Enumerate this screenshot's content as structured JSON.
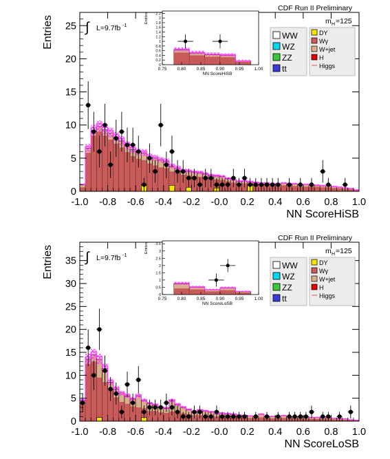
{
  "chart_data": [
    {
      "type": "histogram",
      "xlabel": "NN ScoreHiSB",
      "ylabel": "Entries",
      "xlim": [
        -1.0,
        1.0
      ],
      "ylim": [
        0,
        27
      ],
      "xticks": [
        "-1.0",
        "-0.8",
        "-0.6",
        "-0.4",
        "-0.2",
        "-0.0",
        "0.2",
        "0.4",
        "0.6",
        "0.8",
        "1.0"
      ],
      "yticks": [
        "0",
        "5",
        "10",
        "15",
        "20",
        "25"
      ],
      "ytick_values": [
        0,
        5,
        10,
        15,
        20,
        25
      ],
      "header": "CDF Run II Preliminary",
      "mass_label": "m",
      "mass_sub": "H",
      "mass_value": "=125",
      "lumi_label": "L=9.7fb",
      "lumi_exp": "-1",
      "bin_edges_start": -1.0,
      "bin_width": 0.04,
      "stack_total": [
        1.0,
        6.5,
        9.2,
        9.8,
        9.3,
        8.8,
        8.2,
        7.6,
        6.9,
        6.3,
        5.9,
        5.8,
        5.2,
        5.0,
        4.7,
        4.5,
        3.8,
        3.5,
        3.1,
        3.0,
        2.9,
        2.8,
        2.6,
        2.4,
        2.3,
        2.2,
        1.9,
        1.7,
        1.5,
        1.5,
        1.4,
        1.3,
        1.2,
        1.2,
        1.1,
        1.1,
        1.2,
        1.1,
        1.1,
        1.0,
        1.0,
        0.9,
        0.9,
        0.8,
        0.8,
        0.7,
        0.6,
        0.5,
        0.4,
        0.2
      ],
      "wgamma": [
        0.6,
        5.8,
        8.4,
        9.0,
        8.4,
        7.8,
        7.2,
        6.6,
        5.9,
        5.3,
        4.9,
        4.7,
        4.2,
        3.9,
        3.6,
        3.5,
        3.0,
        2.8,
        2.5,
        2.4,
        2.3,
        2.2,
        2.0,
        1.9,
        1.8,
        1.7,
        1.5,
        1.3,
        1.2,
        1.2,
        1.1,
        1.0,
        0.9,
        0.9,
        0.8,
        0.8,
        0.9,
        0.8,
        0.8,
        0.7,
        0.7,
        0.7,
        0.7,
        0.6,
        0.6,
        0.5,
        0.45,
        0.35,
        0.3,
        0.15
      ],
      "dy": [
        0.2,
        0.0,
        0.4,
        0.0,
        0.0,
        0.0,
        0.0,
        0.0,
        0.0,
        0.0,
        0.0,
        0.0,
        0.0,
        0.0,
        0.0,
        0.0,
        0.0,
        0.0,
        0.0,
        0.0,
        0.0,
        0.0,
        0.0,
        0.0,
        0.0,
        0.0,
        0.0,
        0.0,
        0.0,
        0.0,
        0.0,
        0.0,
        0.0,
        0.0,
        0.0,
        0.0,
        0.0,
        0.0,
        0.0,
        0.0,
        0.0,
        0.0,
        0.0,
        0.0,
        0.0,
        0.0,
        0.0,
        0.0,
        0.0,
        0.0
      ],
      "dy_boxes": [
        {
          "x": -0.56,
          "h": 0.9
        },
        {
          "x": -0.36,
          "h": 0.9
        },
        {
          "x": -0.24,
          "h": 0.6
        },
        {
          "x": -0.04,
          "h": 0.5
        },
        {
          "x": 0.2,
          "h": 0.9
        }
      ],
      "data_points": [
        [
          -0.94,
          13,
          3.6
        ],
        [
          -0.9,
          9,
          3.0
        ],
        [
          -0.86,
          6,
          2.4
        ],
        [
          -0.82,
          10,
          3.2
        ],
        [
          -0.78,
          4,
          2.0
        ],
        [
          -0.74,
          8,
          2.8
        ],
        [
          -0.7,
          9,
          3.0
        ],
        [
          -0.66,
          7,
          2.6
        ],
        [
          -0.62,
          7,
          2.6
        ],
        [
          -0.58,
          6,
          2.4
        ],
        [
          -0.54,
          1,
          1.0
        ],
        [
          -0.5,
          5,
          2.2
        ],
        [
          -0.46,
          3,
          1.7
        ],
        [
          -0.42,
          10,
          3.2
        ],
        [
          -0.38,
          4,
          2.0
        ],
        [
          -0.34,
          6,
          2.4
        ],
        [
          -0.3,
          3,
          1.7
        ],
        [
          -0.26,
          3,
          1.7
        ],
        [
          -0.22,
          2,
          1.4
        ],
        [
          -0.18,
          2,
          1.4
        ],
        [
          -0.14,
          1,
          1.0
        ],
        [
          -0.1,
          2,
          1.4
        ],
        [
          -0.06,
          2,
          1.4
        ],
        [
          -0.02,
          1,
          1.0
        ],
        [
          0.02,
          1,
          1.0
        ],
        [
          0.06,
          1,
          1.0
        ],
        [
          0.1,
          2,
          1.4
        ],
        [
          0.14,
          1,
          1.0
        ],
        [
          0.18,
          2,
          1.4
        ],
        [
          0.22,
          1,
          1.0
        ],
        [
          0.26,
          1,
          1.0
        ],
        [
          0.3,
          1,
          1.0
        ],
        [
          0.34,
          1,
          1.0
        ],
        [
          0.38,
          1,
          1.0
        ],
        [
          0.42,
          1,
          1.0
        ],
        [
          0.5,
          1,
          1.0
        ],
        [
          0.58,
          1,
          1.0
        ],
        [
          0.66,
          1,
          1.0
        ],
        [
          0.74,
          3,
          1.7
        ],
        [
          0.78,
          1,
          1.0
        ],
        [
          0.9,
          1,
          1.0
        ]
      ],
      "inset": {
        "xlabel": "NN ScoreHiSB",
        "ylabel": "Entries",
        "xlim": [
          0.75,
          1.0
        ],
        "ylim": [
          0,
          2.3
        ],
        "xticks": [
          "0.75",
          "0.80",
          "0.85",
          "0.90",
          "0.95",
          "1.00"
        ],
        "xtick_values": [
          0.75,
          0.8,
          0.85,
          0.9,
          0.95,
          1.0
        ],
        "yticks": [
          "0",
          "0.2",
          "0.4",
          "0.6",
          "0.8",
          "1",
          "1.2",
          "1.4",
          "1.6",
          "1.8",
          "2",
          "2.2"
        ],
        "ytick_values": [
          0,
          0.2,
          0.4,
          0.6,
          0.8,
          1.0,
          1.2,
          1.4,
          1.6,
          1.8,
          2.0,
          2.2
        ],
        "bin_edges": [
          0.78,
          0.82,
          0.86,
          0.9,
          0.94,
          0.98
        ],
        "stack_total": [
          0.63,
          0.5,
          0.43,
          0.4,
          0.15
        ],
        "wgamma": [
          0.52,
          0.4,
          0.34,
          0.32,
          0.12
        ],
        "data_points": [
          [
            0.81,
            1.0,
            0.2
          ],
          [
            0.9,
            1.0,
            0.2
          ]
        ]
      }
    },
    {
      "type": "histogram",
      "xlabel": "NN ScoreLoSB",
      "ylabel": "Entries",
      "xlim": [
        -1.0,
        1.0
      ],
      "ylim": [
        0,
        39
      ],
      "xticks": [
        "-1.0",
        "-0.8",
        "-0.6",
        "-0.4",
        "-0.2",
        "-0.0",
        "0.2",
        "0.4",
        "0.6",
        "0.8",
        "1.0"
      ],
      "yticks": [
        "0",
        "5",
        "10",
        "15",
        "20",
        "25",
        "30",
        "35"
      ],
      "ytick_values": [
        0,
        5,
        10,
        15,
        20,
        25,
        30,
        35
      ],
      "header": "CDF Run II Preliminary",
      "mass_label": "m",
      "mass_sub": "H",
      "mass_value": "=125",
      "lumi_label": "L=9.7fb",
      "lumi_exp": "-1",
      "bin_edges_start": -1.0,
      "bin_width": 0.04,
      "stack_total": [
        4.5,
        13.5,
        14.5,
        13.5,
        11.5,
        8.5,
        7.0,
        6.0,
        5.5,
        4.8,
        5.5,
        4.5,
        3.8,
        3.5,
        3.0,
        2.8,
        4.5,
        3.6,
        3.0,
        2.5,
        2.0,
        2.4,
        2.2,
        2.0,
        1.6,
        1.7,
        1.6,
        1.5,
        1.3,
        1.2,
        1.1,
        1.0,
        1.5,
        1.0,
        1.0,
        0.9,
        1.2,
        1.0,
        0.9,
        1.0,
        0.9,
        0.8,
        0.8,
        0.7,
        0.7,
        0.6,
        0.5,
        0.5,
        0.3,
        0.2
      ],
      "wgamma": [
        3.8,
        12.5,
        13.0,
        9.5,
        8.5,
        7.0,
        5.2,
        4.2,
        3.8,
        3.2,
        3.0,
        2.8,
        2.3,
        2.2,
        1.9,
        1.8,
        2.1,
        1.9,
        1.7,
        1.5,
        1.3,
        1.3,
        1.2,
        1.1,
        1.0,
        1.0,
        0.9,
        0.9,
        0.8,
        0.8,
        0.7,
        0.7,
        0.8,
        0.6,
        0.6,
        0.6,
        0.7,
        0.6,
        0.6,
        0.6,
        0.5,
        0.5,
        0.5,
        0.45,
        0.45,
        0.4,
        0.35,
        0.3,
        0.2,
        0.1
      ],
      "dy_boxes": [
        {
          "x": -0.88,
          "h": 0.8
        },
        {
          "x": -0.56,
          "h": 0.8
        }
      ],
      "data_points": [
        [
          -0.98,
          4,
          2.0
        ],
        [
          -0.94,
          16,
          4.0
        ],
        [
          -0.9,
          10,
          3.2
        ],
        [
          -0.86,
          20,
          4.5
        ],
        [
          -0.82,
          11,
          3.3
        ],
        [
          -0.78,
          7,
          2.6
        ],
        [
          -0.74,
          6,
          2.4
        ],
        [
          -0.7,
          2,
          1.4
        ],
        [
          -0.66,
          8,
          2.8
        ],
        [
          -0.62,
          4,
          2.0
        ],
        [
          -0.58,
          9,
          3.0
        ],
        [
          -0.54,
          2,
          1.4
        ],
        [
          -0.5,
          3,
          1.7
        ],
        [
          -0.46,
          3,
          1.7
        ],
        [
          -0.42,
          3,
          1.7
        ],
        [
          -0.38,
          4,
          2.0
        ],
        [
          -0.34,
          3,
          1.7
        ],
        [
          -0.3,
          2,
          1.4
        ],
        [
          -0.26,
          1,
          1.0
        ],
        [
          -0.22,
          1,
          1.0
        ],
        [
          -0.18,
          2,
          1.4
        ],
        [
          -0.14,
          2,
          1.4
        ],
        [
          -0.1,
          1,
          1.0
        ],
        [
          -0.06,
          1,
          1.0
        ],
        [
          -0.02,
          2,
          1.4
        ],
        [
          0.02,
          1,
          1.0
        ],
        [
          0.06,
          1,
          1.0
        ],
        [
          0.1,
          1,
          1.0
        ],
        [
          0.14,
          1,
          1.0
        ],
        [
          0.18,
          1,
          1.0
        ],
        [
          0.26,
          1,
          1.0
        ],
        [
          0.34,
          1,
          1.0
        ],
        [
          0.42,
          1,
          1.0
        ],
        [
          0.5,
          1,
          1.0
        ],
        [
          0.54,
          1,
          1.0
        ],
        [
          0.58,
          1,
          1.0
        ],
        [
          0.62,
          1,
          1.0
        ],
        [
          0.66,
          2,
          1.4
        ],
        [
          0.74,
          1,
          1.0
        ],
        [
          0.78,
          1,
          1.0
        ],
        [
          0.86,
          1,
          1.0
        ],
        [
          0.94,
          2,
          1.4
        ]
      ],
      "inset": {
        "xlabel": "NN ScoreLoSB",
        "ylabel": "Entries",
        "xlim": [
          0.75,
          1.0
        ],
        "ylim": [
          0,
          3.7
        ],
        "xticks": [
          "0.75",
          "0.80",
          "0.85",
          "0.90",
          "0.95",
          "1.00"
        ],
        "xtick_values": [
          0.75,
          0.8,
          0.85,
          0.9,
          0.95,
          1.0
        ],
        "yticks": [
          "0",
          "0.5",
          "1",
          "1.5",
          "2",
          "2.5",
          "3",
          "3.5"
        ],
        "ytick_values": [
          0,
          0.5,
          1.0,
          1.5,
          2.0,
          2.5,
          3.0,
          3.5
        ],
        "bin_edges": [
          0.78,
          0.82,
          0.86,
          0.9,
          0.94,
          0.98
        ],
        "stack_total": [
          0.75,
          0.5,
          0.32,
          0.45,
          0.2
        ],
        "wgamma": [
          0.42,
          0.35,
          0.22,
          0.3,
          0.14
        ],
        "data_points": [
          [
            0.89,
            1.0,
            0.3
          ],
          [
            0.92,
            2.0,
            0.3
          ]
        ]
      }
    }
  ],
  "legend": {
    "left": [
      {
        "label": "WW",
        "color": "#ffffff",
        "icon": "box-swatch"
      },
      {
        "label": "WZ",
        "color": "#00d8f0",
        "icon": "box-swatch"
      },
      {
        "label": "ZZ",
        "color": "#3cc83c",
        "icon": "box-swatch"
      },
      {
        "label": "tt",
        "color": "#3a3ad8",
        "icon": "box-swatch"
      }
    ],
    "right": [
      {
        "label": "DY",
        "color": "#f5e400",
        "icon": "box-swatch"
      },
      {
        "label": "Wγ",
        "color": "#c85a5a",
        "icon": "box-swatch"
      },
      {
        "label": "W+jet",
        "color": "#d9b08c",
        "icon": "box-swatch"
      },
      {
        "label": "H",
        "color": "#e00000",
        "icon": "box-swatch"
      },
      {
        "label": "Higgs",
        "color": "#e05050",
        "icon": "line-swatch"
      }
    ]
  },
  "colors": {
    "wgamma": "#c85a5a",
    "wjet": "#d9b08c",
    "dy": "#f5e400",
    "higgs": "#ff33ff",
    "data": "#000000"
  }
}
